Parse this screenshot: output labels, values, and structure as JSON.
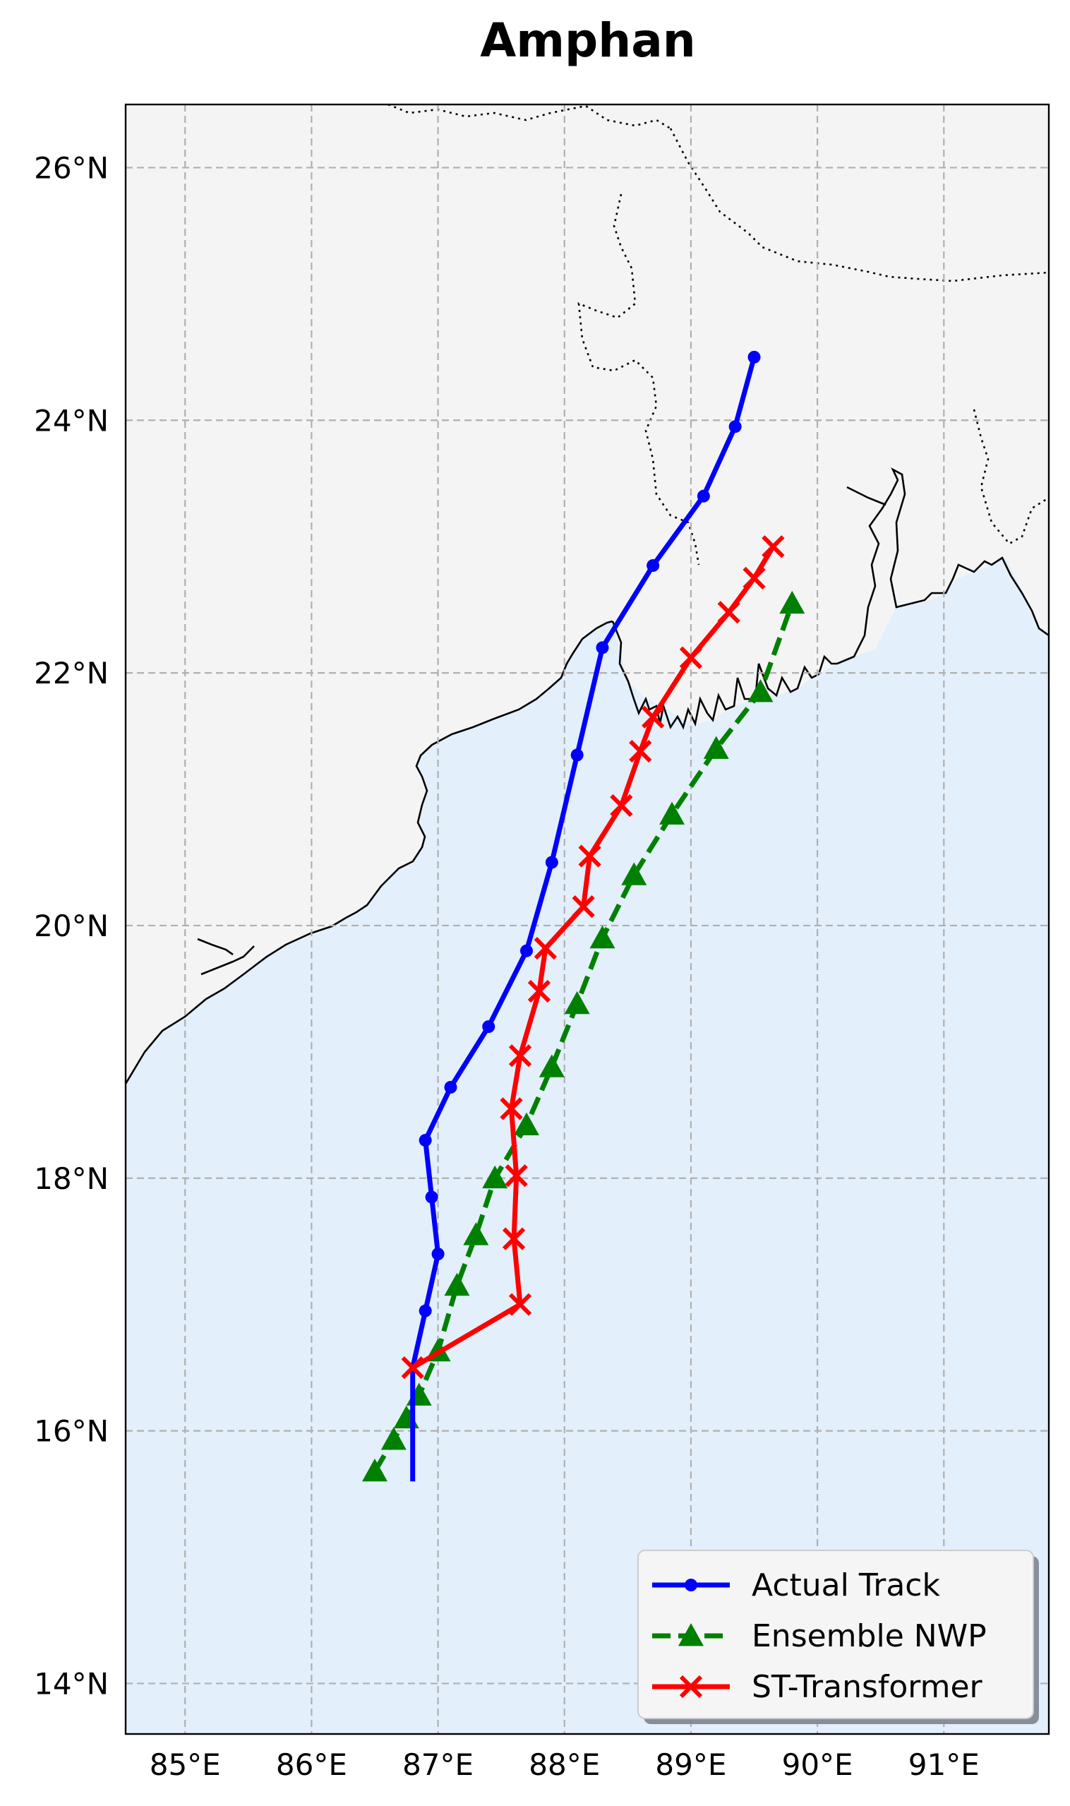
{
  "chart_data": {
    "type": "line",
    "title": "Amphan",
    "xlabel": "",
    "ylabel": "",
    "xlim": [
      84.53,
      91.83
    ],
    "ylim": [
      13.6,
      26.5
    ],
    "x_ticks": [
      85,
      86,
      87,
      88,
      89,
      90,
      91
    ],
    "x_tick_labels": [
      "85°E",
      "86°E",
      "87°E",
      "88°E",
      "89°E",
      "90°E",
      "91°E"
    ],
    "y_ticks": [
      14,
      16,
      18,
      20,
      22,
      24,
      26
    ],
    "y_tick_labels": [
      "14°N",
      "16°N",
      "18°N",
      "20°N",
      "22°N",
      "24°N",
      "26°N"
    ],
    "grid": true,
    "legend_position": "lower-right",
    "colors": {
      "land": "#f4f4f4",
      "ocean": "#e3effb",
      "coast": "#000000",
      "border": "#000000",
      "grid": "#b5b5b5"
    },
    "series": [
      {
        "name": "Actual Track",
        "color": "#0000ff",
        "line_style": "solid",
        "marker": "circle",
        "points": [
          [
            86.8,
            15.6
          ],
          [
            86.8,
            16.5
          ],
          [
            86.9,
            16.95
          ],
          [
            87.0,
            17.4
          ],
          [
            86.95,
            17.85
          ],
          [
            86.9,
            18.3
          ],
          [
            87.1,
            18.72
          ],
          [
            87.4,
            19.2
          ],
          [
            87.7,
            19.8
          ],
          [
            87.9,
            20.5
          ],
          [
            88.1,
            21.35
          ],
          [
            88.3,
            22.2
          ],
          [
            88.7,
            22.85
          ],
          [
            89.1,
            23.4
          ],
          [
            89.35,
            23.95
          ],
          [
            89.5,
            24.5
          ]
        ],
        "markers_from": 2
      },
      {
        "name": "Ensemble NWP",
        "color": "#008000",
        "line_style": "dashed",
        "marker": "triangle",
        "points": [
          [
            86.5,
            15.68
          ],
          [
            86.65,
            15.93
          ],
          [
            86.75,
            16.1
          ],
          [
            86.85,
            16.28
          ],
          [
            87.0,
            16.63
          ],
          [
            87.15,
            17.15
          ],
          [
            87.3,
            17.55
          ],
          [
            87.45,
            18.0
          ],
          [
            87.7,
            18.42
          ],
          [
            87.9,
            18.88
          ],
          [
            88.1,
            19.38
          ],
          [
            88.3,
            19.9
          ],
          [
            88.55,
            20.4
          ],
          [
            88.85,
            20.88
          ],
          [
            89.2,
            21.4
          ],
          [
            89.55,
            21.85
          ],
          [
            89.8,
            22.55
          ]
        ],
        "markers_from": 0
      },
      {
        "name": "ST-Transformer",
        "color": "#ff0000",
        "line_style": "solid",
        "marker": "x",
        "points": [
          [
            86.8,
            16.5
          ],
          [
            87.65,
            17.0
          ],
          [
            87.6,
            17.52
          ],
          [
            87.62,
            18.02
          ],
          [
            87.58,
            18.55
          ],
          [
            87.65,
            18.97
          ],
          [
            87.8,
            19.48
          ],
          [
            87.85,
            19.82
          ],
          [
            88.15,
            20.15
          ],
          [
            88.2,
            20.55
          ],
          [
            88.45,
            20.95
          ],
          [
            88.6,
            21.38
          ],
          [
            88.7,
            21.65
          ],
          [
            89.0,
            22.12
          ],
          [
            89.3,
            22.48
          ],
          [
            89.5,
            22.75
          ],
          [
            89.65,
            23.0
          ]
        ],
        "markers_from": 0
      }
    ]
  }
}
